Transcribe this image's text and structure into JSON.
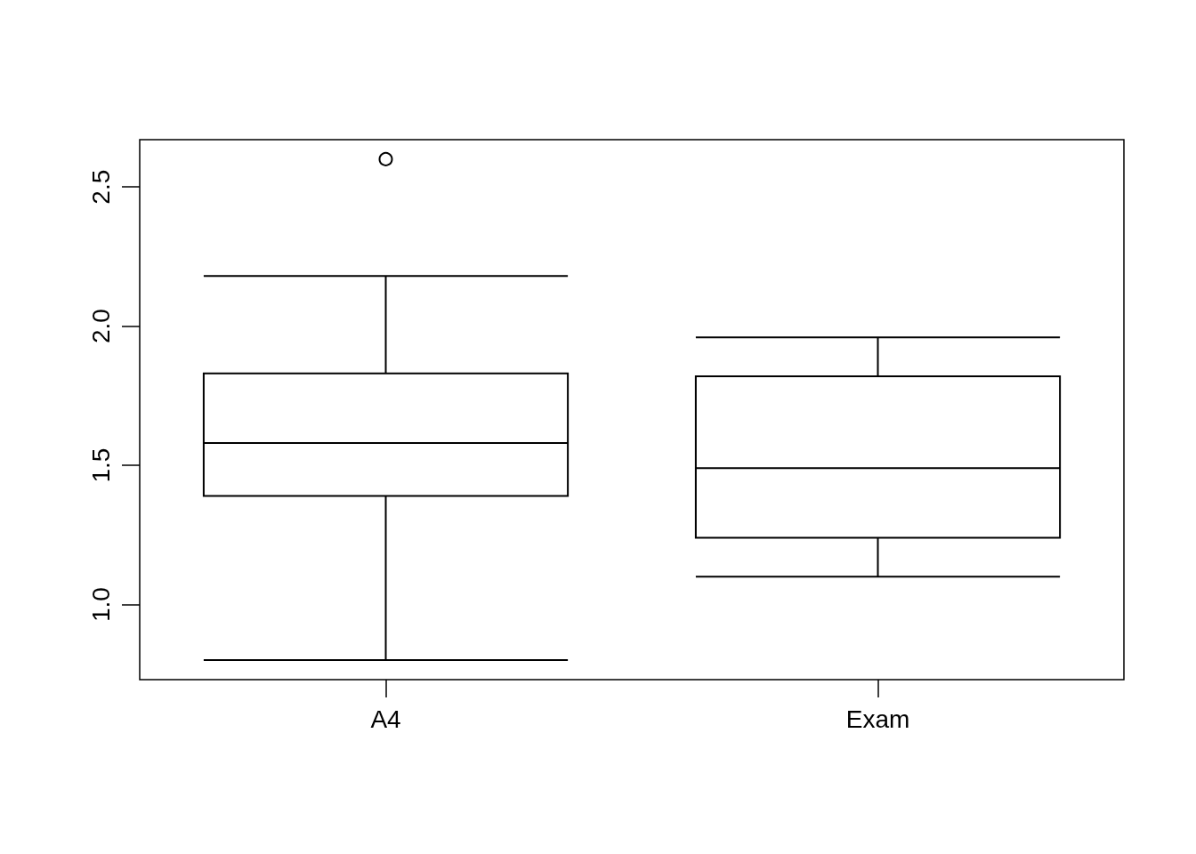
{
  "chart_data": {
    "type": "box",
    "categories": [
      "A4",
      "Exam"
    ],
    "boxes": [
      {
        "low": 0.8,
        "q1": 1.39,
        "median": 1.58,
        "q3": 1.83,
        "high": 2.18,
        "outliers": [
          2.6
        ]
      },
      {
        "low": 1.1,
        "q1": 1.24,
        "median": 1.49,
        "q3": 1.82,
        "high": 1.96
      }
    ],
    "color": "#000000",
    "ylim": [
      0.73,
      2.67
    ],
    "yticks": [
      {
        "value": 1,
        "label": "1.0"
      },
      {
        "value": 1.5,
        "label": "1.5"
      },
      {
        "value": 2,
        "label": "2.0"
      },
      {
        "value": 2.5,
        "label": "2.5"
      }
    ],
    "grid": false
  }
}
